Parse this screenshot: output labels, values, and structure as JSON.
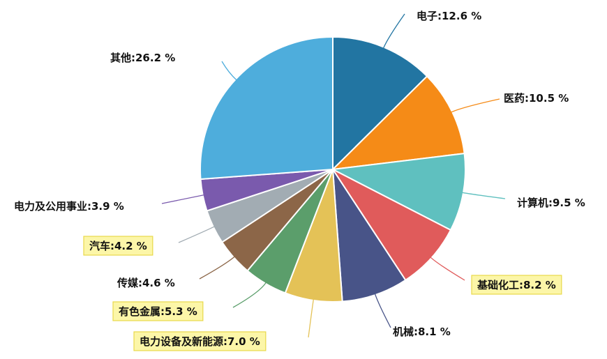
{
  "chart_data": {
    "type": "pie",
    "title": "",
    "unit": "%",
    "slices": [
      {
        "name": "电子",
        "value": 12.6,
        "color": "#2275a2",
        "highlight": false
      },
      {
        "name": "医药",
        "value": 10.5,
        "color": "#f58b17",
        "highlight": false
      },
      {
        "name": "计算机",
        "value": 9.5,
        "color": "#5fc0bf",
        "highlight": false
      },
      {
        "name": "基础化工",
        "value": 8.2,
        "color": "#e05b5b",
        "highlight": true
      },
      {
        "name": "机械",
        "value": 8.1,
        "color": "#485488",
        "highlight": false
      },
      {
        "name": "电力设备及新能源",
        "value": 7.0,
        "color": "#e4c257",
        "highlight": true
      },
      {
        "name": "有色金属",
        "value": 5.3,
        "color": "#5b9e6b",
        "highlight": true
      },
      {
        "name": "传媒",
        "value": 4.6,
        "color": "#8c6648",
        "highlight": false
      },
      {
        "name": "汽车",
        "value": 4.2,
        "color": "#a2acb3",
        "highlight": true
      },
      {
        "name": "电力及公用事业",
        "value": 3.9,
        "color": "#7a5aad",
        "highlight": false
      },
      {
        "name": "其他",
        "value": 26.2,
        "color": "#4eaddc",
        "highlight": false
      }
    ]
  }
}
